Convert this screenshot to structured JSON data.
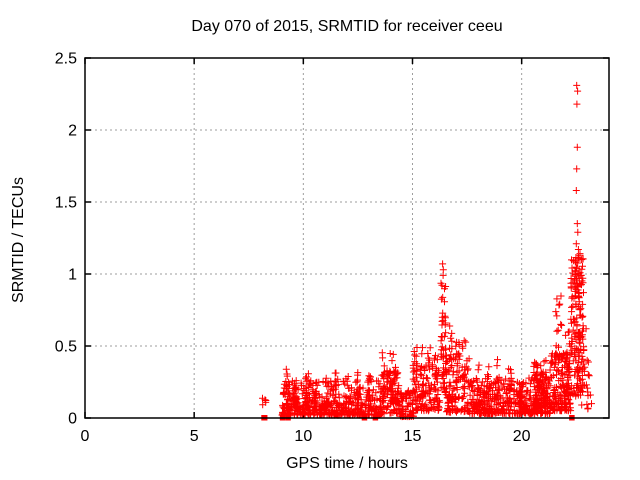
{
  "window": {
    "title": "Day 070 of 2015, SRMTID for receiver ceeu"
  },
  "colors": {
    "marker": "#ff0000",
    "border": "#000000",
    "grid": "#9e9e9e",
    "background": "#ffffff",
    "text": "#000000"
  },
  "chart_data": {
    "type": "scatter",
    "title": "Day 070 of 2015, SRMTID for receiver ceeu",
    "xlabel": "GPS time / hours",
    "ylabel": "SRMTID / TECUs",
    "xlim": [
      0,
      24
    ],
    "ylim": [
      0,
      2.5
    ],
    "x_ticks": [
      0,
      5,
      10,
      15,
      20
    ],
    "x_tick_labels": [
      "0",
      "5",
      "10",
      "15",
      "20"
    ],
    "y_ticks": [
      0,
      0.5,
      1,
      1.5,
      2,
      2.5
    ],
    "y_tick_labels": [
      "0",
      "0.5",
      "1",
      "1.5",
      "2",
      "2.5"
    ],
    "grid": "dashed, on both axes, mirrored inward ticks",
    "legend": "none",
    "marker": {
      "shape": "plus",
      "color": "#ff0000",
      "size": 7
    },
    "seed": 20150070,
    "description": "Red + markers. No data before ~8.1 h. Dense low band ~0.02-0.3 TECU from 9-21 h, spike to ~1.07 at 16.4 h, major spike 22.2-22.9 h reaching 2.31 TECU.",
    "clusters": [
      [
        8.1,
        8.35,
        5,
        0.08,
        0.15,
        1.0
      ],
      [
        9.0,
        13.55,
        430,
        0.02,
        0.26,
        2.2
      ],
      [
        9.2,
        9.35,
        14,
        0.05,
        0.36,
        1.4
      ],
      [
        9.55,
        9.7,
        12,
        0.05,
        0.3,
        1.4
      ],
      [
        10.1,
        10.25,
        14,
        0.05,
        0.34,
        1.4
      ],
      [
        10.45,
        10.62,
        12,
        0.05,
        0.3,
        1.4
      ],
      [
        10.95,
        11.1,
        12,
        0.05,
        0.32,
        1.4
      ],
      [
        11.45,
        11.62,
        14,
        0.05,
        0.35,
        1.4
      ],
      [
        11.95,
        12.1,
        12,
        0.05,
        0.3,
        1.4
      ],
      [
        12.45,
        12.62,
        12,
        0.05,
        0.33,
        1.4
      ],
      [
        12.95,
        13.1,
        12,
        0.05,
        0.3,
        1.4
      ],
      [
        13.55,
        14.4,
        90,
        0.03,
        0.33,
        1.7
      ],
      [
        13.6,
        13.78,
        12,
        0.1,
        0.47,
        1.2
      ],
      [
        13.95,
        14.15,
        14,
        0.1,
        0.45,
        1.2
      ],
      [
        14.15,
        14.32,
        10,
        0.1,
        0.4,
        1.2
      ],
      [
        14.4,
        15.05,
        60,
        0.01,
        0.2,
        1.7
      ],
      [
        15.0,
        16.25,
        110,
        0.05,
        0.38,
        1.7
      ],
      [
        15.05,
        15.22,
        12,
        0.12,
        0.55,
        1.2
      ],
      [
        15.35,
        15.52,
        12,
        0.12,
        0.5,
        1.2
      ],
      [
        15.65,
        15.82,
        12,
        0.12,
        0.5,
        1.2
      ],
      [
        16.0,
        16.17,
        10,
        0.12,
        0.45,
        1.2
      ],
      [
        16.3,
        16.52,
        45,
        0.15,
        0.95,
        1.2
      ],
      [
        16.5,
        17.6,
        110,
        0.04,
        0.45,
        1.6
      ],
      [
        16.68,
        16.84,
        12,
        0.12,
        0.65,
        1.2
      ],
      [
        16.98,
        17.14,
        12,
        0.12,
        0.6,
        1.2
      ],
      [
        17.28,
        17.44,
        10,
        0.12,
        0.55,
        1.2
      ],
      [
        17.6,
        21.3,
        400,
        0.03,
        0.28,
        2.0
      ],
      [
        17.95,
        18.12,
        12,
        0.08,
        0.45,
        1.3
      ],
      [
        18.35,
        18.52,
        10,
        0.08,
        0.4,
        1.3
      ],
      [
        18.85,
        19.02,
        12,
        0.08,
        0.42,
        1.3
      ],
      [
        19.35,
        19.52,
        10,
        0.08,
        0.35,
        1.3
      ],
      [
        19.85,
        20.02,
        10,
        0.08,
        0.33,
        1.3
      ],
      [
        20.55,
        21.15,
        80,
        0.08,
        0.4,
        1.5
      ],
      [
        21.3,
        22.25,
        150,
        0.05,
        0.45,
        1.5
      ],
      [
        21.55,
        21.85,
        16,
        0.3,
        0.9,
        1.1
      ],
      [
        22.0,
        22.2,
        20,
        0.15,
        0.6,
        1.2
      ],
      [
        22.25,
        22.85,
        160,
        0.15,
        1.12,
        1.1
      ],
      [
        22.4,
        22.68,
        24,
        0.85,
        1.15,
        1.0
      ],
      [
        22.85,
        23.1,
        12,
        0.05,
        0.5,
        1.3
      ]
    ],
    "outliers": [
      [
        16.38,
        1.07
      ],
      [
        16.41,
        1.03
      ],
      [
        16.4,
        0.99
      ],
      [
        22.52,
        2.31
      ],
      [
        22.56,
        2.27
      ],
      [
        22.53,
        2.18
      ],
      [
        22.55,
        1.88
      ],
      [
        22.52,
        1.73
      ],
      [
        22.5,
        1.58
      ],
      [
        22.55,
        1.35
      ],
      [
        22.57,
        1.29
      ],
      [
        22.5,
        1.21
      ],
      [
        22.6,
        1.17
      ],
      [
        22.95,
        0.62
      ],
      [
        23.0,
        0.4
      ],
      [
        23.05,
        0.3
      ],
      [
        23.15,
        0.16
      ],
      [
        23.2,
        0.1
      ],
      [
        22.75,
        0.09
      ]
    ],
    "zero_value_points": [
      8.2,
      8.23,
      9.05,
      9.3,
      12.8,
      13.3,
      22.3
    ]
  }
}
